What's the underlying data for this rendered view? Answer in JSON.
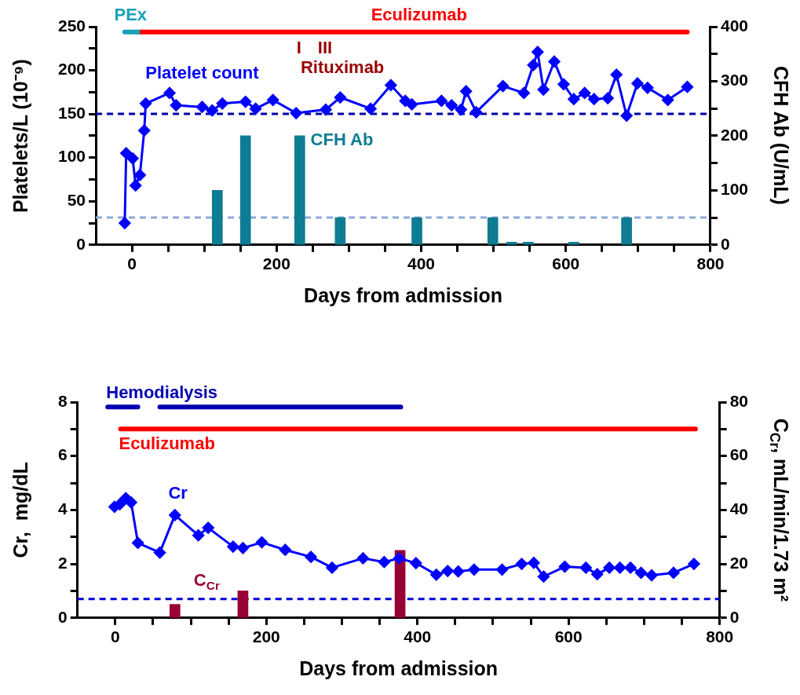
{
  "chart_data": [
    {
      "type": "line",
      "xlabel": "Days from admission",
      "ylabel": "Platelets/L (10⁻⁹)",
      "y2label": "CFH Ab (U/mL)",
      "legend": false,
      "marker": "diamond",
      "xlim": [
        -50,
        800
      ],
      "xticks": [
        0,
        {
          "value": 50,
          "label": null
        },
        {
          "value": 100,
          "label": null
        },
        {
          "value": 150,
          "label": null
        },
        200,
        {
          "value": 250,
          "label": null
        },
        {
          "value": 300,
          "label": null
        },
        {
          "value": 350,
          "label": null
        },
        400,
        {
          "value": 450,
          "label": null
        },
        {
          "value": 500,
          "label": null
        },
        {
          "value": 550,
          "label": null
        },
        600,
        {
          "value": 650,
          "label": null
        },
        {
          "value": 700,
          "label": null
        },
        {
          "value": 750,
          "label": null
        },
        800
      ],
      "ylim": [
        0,
        250
      ],
      "yticks": [
        0,
        {
          "value": 25,
          "label": null
        },
        50,
        {
          "value": 75,
          "label": null
        },
        100,
        {
          "value": 125,
          "label": null
        },
        150,
        {
          "value": 175,
          "label": null
        },
        200,
        {
          "value": 225,
          "label": null
        },
        250
      ],
      "y2lim": [
        0,
        400
      ],
      "y2ticks": [
        0,
        {
          "value": 50,
          "label": null
        },
        100,
        {
          "value": 150,
          "label": null
        },
        200,
        {
          "value": 250,
          "label": null
        },
        300,
        {
          "value": 350,
          "label": null
        },
        400
      ],
      "series": [
        {
          "name": "Platelet count",
          "color": "#0000ff",
          "x": [
            -10,
            -8,
            1,
            5,
            11,
            17,
            19,
            52,
            61,
            97,
            111,
            125,
            157,
            171,
            195,
            227,
            268,
            288,
            330,
            358,
            378,
            387,
            428,
            442,
            455,
            462,
            476,
            513,
            542,
            555,
            561,
            569,
            584,
            597,
            611,
            626,
            639,
            658,
            670,
            684,
            699,
            713,
            741,
            768
          ],
          "values": [
            25,
            105,
            99,
            68,
            80,
            131,
            162,
            174,
            160,
            158,
            154,
            162,
            164,
            156,
            166,
            151,
            155,
            169,
            156,
            183,
            165,
            161,
            165,
            160,
            155,
            176,
            152,
            182,
            174,
            206,
            221,
            178,
            210,
            184,
            167,
            174,
            167,
            168,
            195,
            148,
            185,
            180,
            166,
            181
          ]
        },
        {
          "name": "CFH Ab",
          "type": "bar",
          "axis": "y2",
          "color": "#0e7c93",
          "x": [
            118,
            157,
            232,
            288,
            394,
            499,
            525,
            548,
            611,
            684
          ],
          "values": [
            100,
            200,
            200,
            50,
            50,
            50,
            5,
            5,
            5,
            50
          ]
        },
        {
          "name": "PEx",
          "marker": "none",
          "color": "#1aa0b8",
          "x": [
            -10,
            8
          ],
          "values": [
            244,
            244
          ]
        },
        {
          "name": "Eculizumab",
          "marker": "none",
          "color": "#ff0000",
          "x": [
            8,
            768
          ],
          "values": [
            244,
            244
          ]
        }
      ],
      "ref_lines": [
        {
          "axis": "y",
          "value": 150,
          "color": "#0000aa",
          "line_style": "dashed"
        },
        {
          "axis": "y2",
          "value": 50,
          "color": "#8eaad8",
          "line_style": "dashed"
        }
      ],
      "annotations": [
        "I",
        "III",
        "Rituximab"
      ]
    },
    {
      "type": "line",
      "xlabel": "Days from admission",
      "ylabel": "Cr,  mg/dL",
      "y2label": "C$_{Cr}$, mL/min/1.73 m²",
      "legend": false,
      "marker": "diamond",
      "xlim": [
        -50,
        800
      ],
      "xticks": [
        0,
        {
          "value": 50,
          "label": null
        },
        {
          "value": 100,
          "label": null
        },
        {
          "value": 150,
          "label": null
        },
        200,
        {
          "value": 250,
          "label": null
        },
        {
          "value": 300,
          "label": null
        },
        {
          "value": 350,
          "label": null
        },
        400,
        {
          "value": 450,
          "label": null
        },
        {
          "value": 500,
          "label": null
        },
        {
          "value": 550,
          "label": null
        },
        600,
        {
          "value": 650,
          "label": null
        },
        {
          "value": 700,
          "label": null
        },
        {
          "value": 750,
          "label": null
        },
        800
      ],
      "ylim": [
        0,
        8
      ],
      "yticks": [
        0,
        {
          "value": 1,
          "label": null
        },
        2,
        {
          "value": 3,
          "label": null
        },
        4,
        {
          "value": 5,
          "label": null
        },
        6,
        {
          "value": 7,
          "label": null
        },
        8
      ],
      "y2lim": [
        0,
        80
      ],
      "y2ticks": [
        0,
        {
          "value": 10,
          "label": null
        },
        20,
        {
          "value": 30,
          "label": null
        },
        40,
        {
          "value": 50,
          "label": null
        },
        60,
        {
          "value": 70,
          "label": null
        },
        80
      ],
      "series": [
        {
          "name": "Cr",
          "color": "#0000ff",
          "x": [
            -1,
            6,
            14,
            21,
            30,
            59,
            79,
            110,
            123,
            156,
            169,
            194,
            225,
            259,
            287,
            328,
            356,
            376,
            398,
            425,
            440,
            454,
            475,
            512,
            538,
            554,
            567,
            595,
            623,
            638,
            654,
            668,
            682,
            696,
            710,
            739,
            766
          ],
          "values": [
            4.12,
            4.21,
            4.44,
            4.28,
            2.78,
            2.42,
            3.81,
            3.06,
            3.34,
            2.64,
            2.59,
            2.8,
            2.52,
            2.26,
            1.86,
            2.21,
            2.07,
            2.21,
            2.03,
            1.6,
            1.74,
            1.72,
            1.79,
            1.79,
            2.0,
            2.04,
            1.53,
            1.9,
            1.86,
            1.62,
            1.86,
            1.86,
            1.86,
            1.67,
            1.58,
            1.67,
            2.0
          ]
        },
        {
          "name": "C$_{Cr}$",
          "type": "bar",
          "axis": "y2",
          "color": "#990033",
          "x": [
            79,
            169,
            377
          ],
          "values": [
            5,
            10,
            25
          ]
        },
        {
          "name": "Hemodialysis",
          "marker": "none",
          "color": "#0000b0",
          "x": [
            -10,
            30,
            45,
            59,
            378
          ],
          "values": [
            7.82,
            7.82,
            null,
            7.82,
            7.82
          ]
        },
        {
          "name": "Eculizumab",
          "marker": "none",
          "color": "#ff0000",
          "x": [
            7,
            768
          ],
          "values": [
            7,
            7
          ]
        }
      ],
      "ref_lines": [
        {
          "axis": "y2",
          "value": 7,
          "color": "#0000dd",
          "line_style": "dashed"
        }
      ]
    }
  ]
}
